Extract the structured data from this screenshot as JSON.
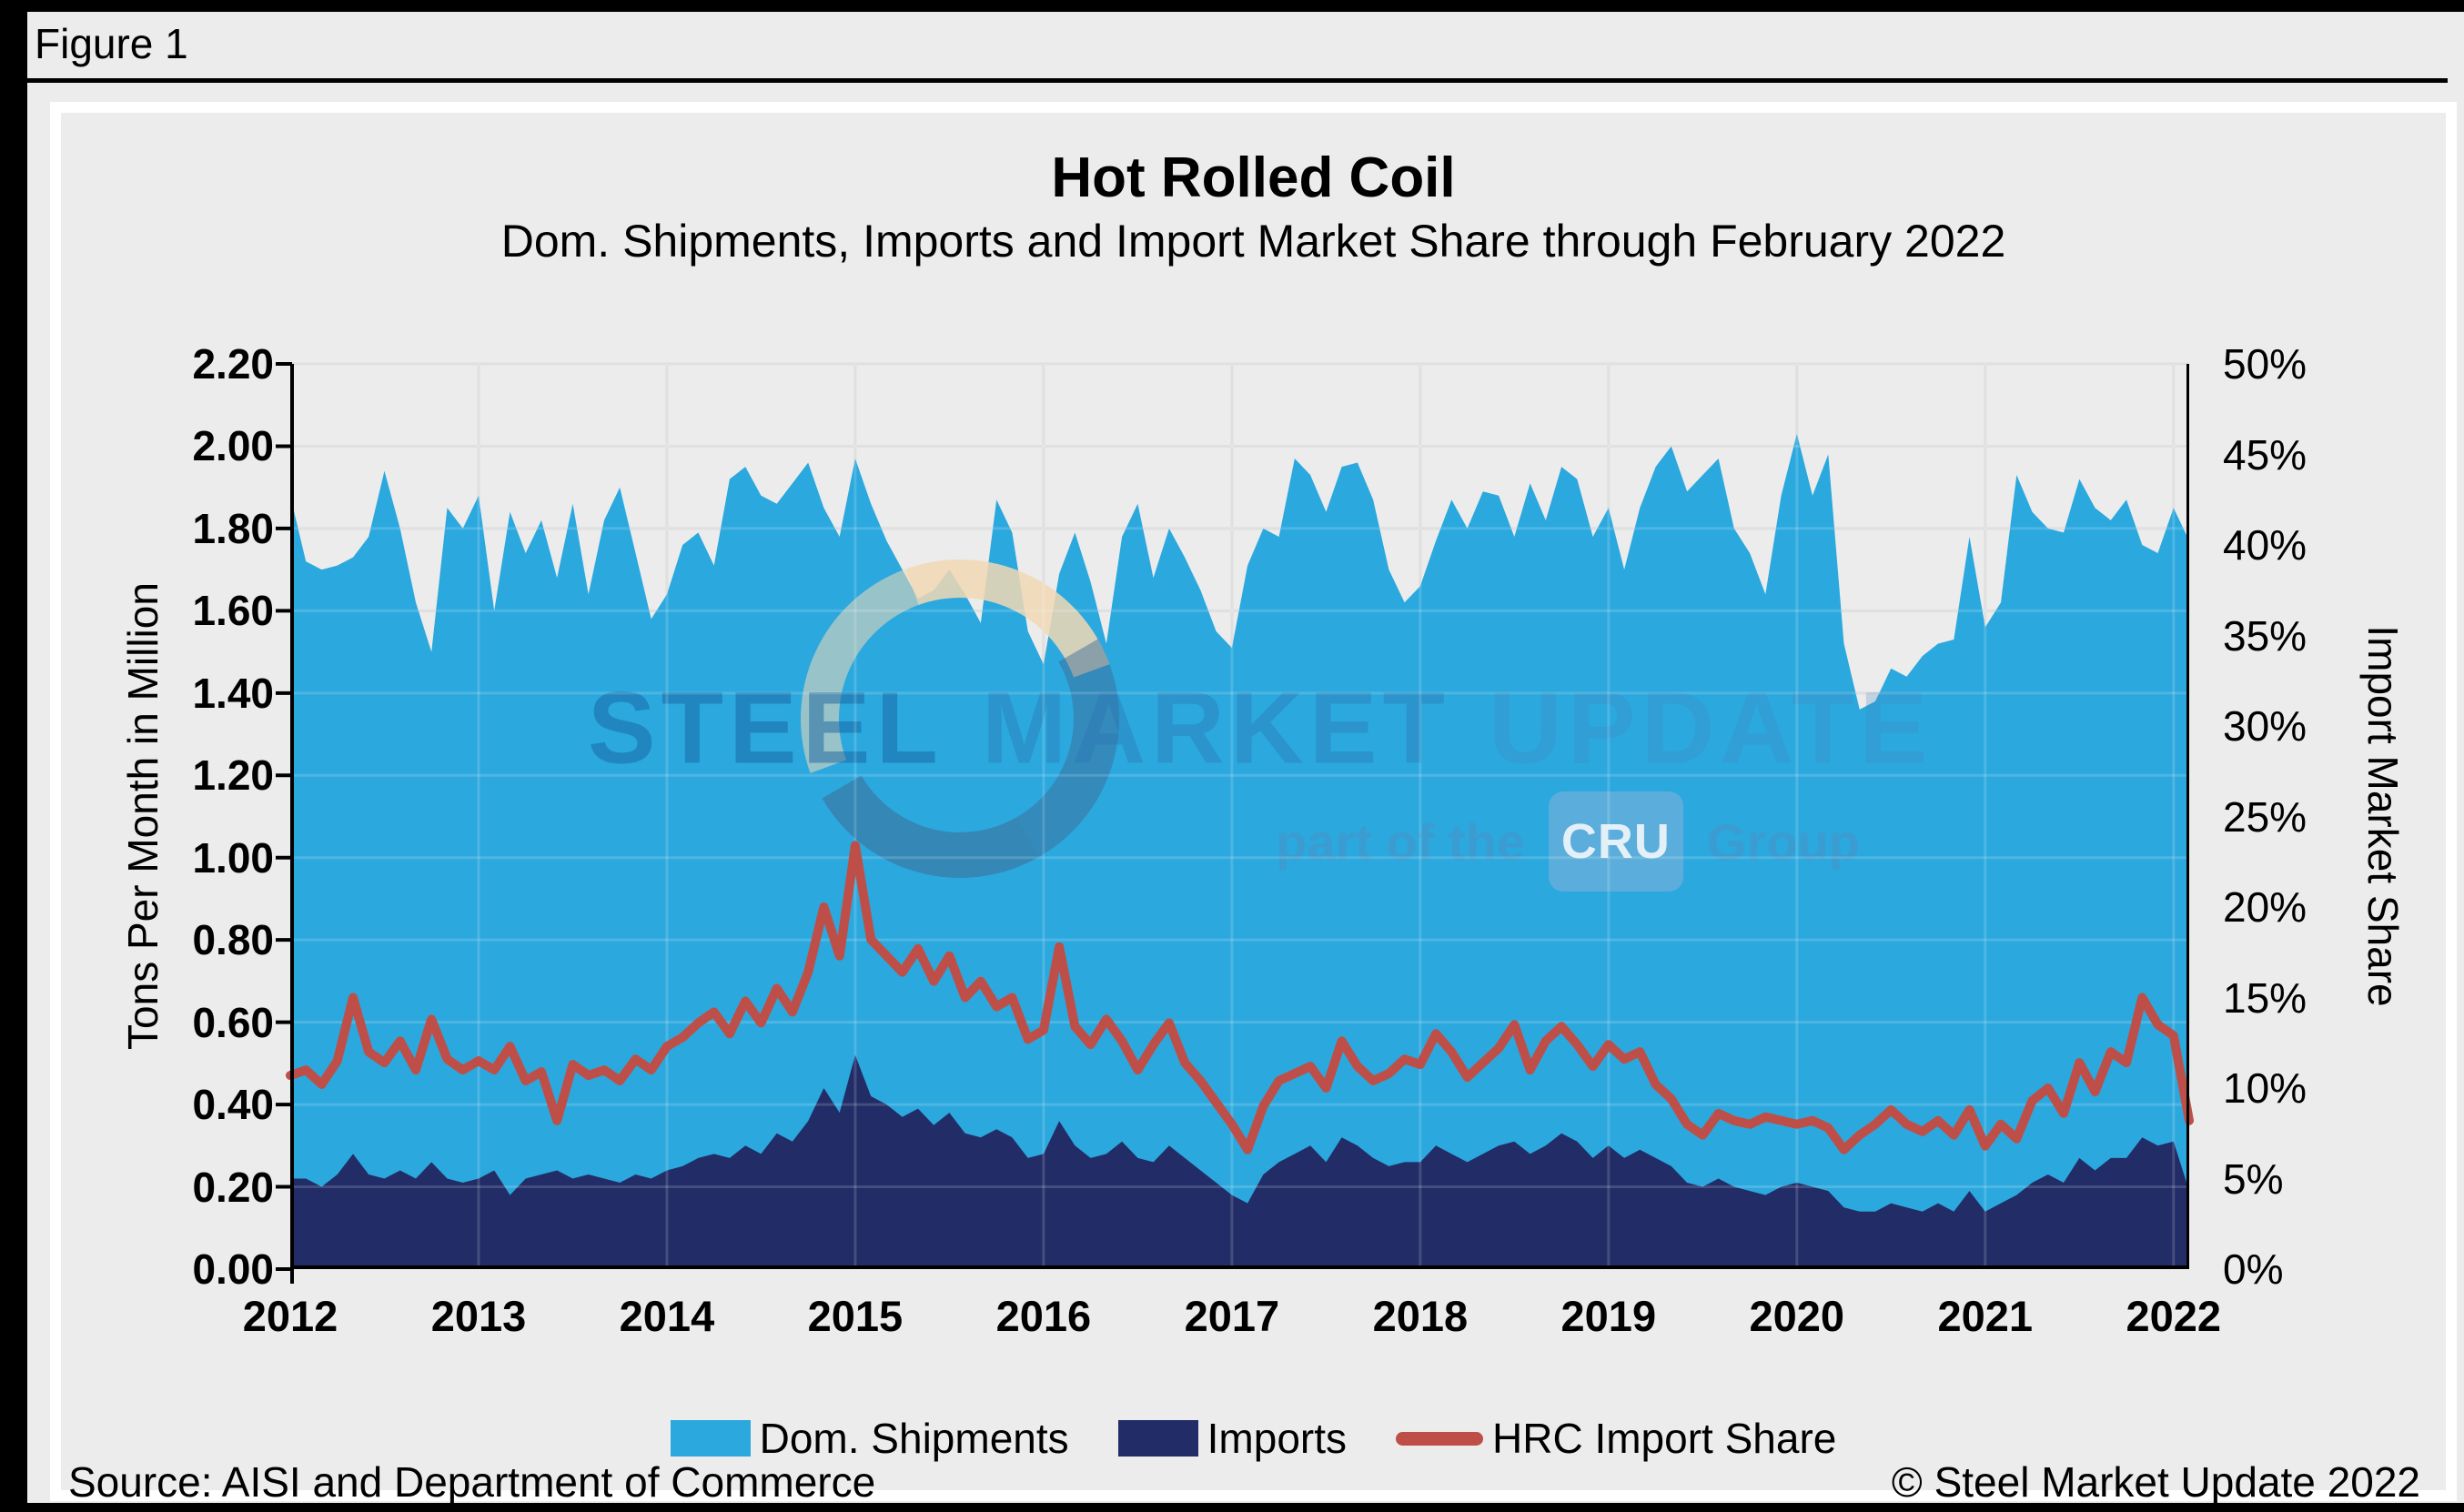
{
  "figure_label": "Figure 1",
  "chart": {
    "title": "Hot Rolled Coil",
    "subtitle": "Dom. Shipments, Imports and Import Market Share through February 2022",
    "y_left": {
      "title": "Tons Per Month in Million",
      "ticks": [
        "0.00",
        "0.20",
        "0.40",
        "0.60",
        "0.80",
        "1.00",
        "1.20",
        "1.40",
        "1.60",
        "1.80",
        "2.00",
        "2.20"
      ]
    },
    "y_right": {
      "title": "Import Market Share",
      "ticks": [
        "0%",
        "5%",
        "10%",
        "15%",
        "20%",
        "25%",
        "30%",
        "35%",
        "40%",
        "45%",
        "50%"
      ]
    },
    "x_ticks": [
      "2012",
      "2013",
      "2014",
      "2015",
      "2016",
      "2017",
      "2018",
      "2019",
      "2020",
      "2021",
      "2022"
    ]
  },
  "legend": [
    {
      "label": "Dom. Shipments",
      "type": "rect",
      "color": "#2BA8DE"
    },
    {
      "label": "Imports",
      "type": "rect",
      "color": "#222C66"
    },
    {
      "label": "HRC Import Share",
      "type": "line",
      "color": "#BE4F48"
    }
  ],
  "watermark": {
    "word1": "STEEL",
    "word2": "MARKET",
    "word3": "UPDATE",
    "sub_prefix": "part of the",
    "cru": "CRU",
    "sub_suffix": "Group"
  },
  "source": "Source: AISI and Department of Commerce",
  "copyright": "© Steel Market Update 2022",
  "colors": {
    "background": "#ececec",
    "panel_frame": "#ffffff",
    "grid": "#dadada",
    "grid_over_area": "rgba(255,255,255,0.16)",
    "axis": "#000000",
    "dom_shipments": "#2BA8DE",
    "imports": "#222C66",
    "hrc_share_line": "#BE4F48"
  },
  "chart_data": {
    "type": "combo",
    "x_unit": "month",
    "x_start": "2012-01",
    "x_end": "2022-02",
    "months_per_xtick": 12,
    "y_left_range": [
      0,
      2.2
    ],
    "y_right_range": [
      0,
      50
    ],
    "grid": true,
    "legend_position": "bottom",
    "series": [
      {
        "name": "Dom. Shipments",
        "type": "area",
        "axis": "left",
        "color": "#2BA8DE",
        "values": [
          1.88,
          1.72,
          1.7,
          1.71,
          1.73,
          1.78,
          1.94,
          1.8,
          1.62,
          1.5,
          1.85,
          1.8,
          1.88,
          1.6,
          1.84,
          1.74,
          1.82,
          1.68,
          1.86,
          1.64,
          1.82,
          1.9,
          1.74,
          1.58,
          1.64,
          1.76,
          1.79,
          1.71,
          1.92,
          1.95,
          1.88,
          1.86,
          1.91,
          1.96,
          1.85,
          1.78,
          1.97,
          1.86,
          1.77,
          1.7,
          1.63,
          1.65,
          1.7,
          1.64,
          1.57,
          1.87,
          1.79,
          1.55,
          1.47,
          1.69,
          1.79,
          1.67,
          1.52,
          1.78,
          1.86,
          1.68,
          1.8,
          1.73,
          1.65,
          1.55,
          1.51,
          1.71,
          1.8,
          1.78,
          1.97,
          1.93,
          1.84,
          1.95,
          1.96,
          1.87,
          1.7,
          1.62,
          1.66,
          1.77,
          1.87,
          1.8,
          1.89,
          1.88,
          1.78,
          1.91,
          1.82,
          1.95,
          1.92,
          1.78,
          1.85,
          1.7,
          1.85,
          1.95,
          2.0,
          1.89,
          1.93,
          1.97,
          1.8,
          1.74,
          1.64,
          1.88,
          2.03,
          1.88,
          1.98,
          1.52,
          1.36,
          1.38,
          1.46,
          1.44,
          1.49,
          1.52,
          1.53,
          1.78,
          1.56,
          1.62,
          1.93,
          1.84,
          1.8,
          1.79,
          1.92,
          1.85,
          1.82,
          1.87,
          1.76,
          1.74,
          1.85,
          1.77
        ]
      },
      {
        "name": "Imports",
        "type": "area",
        "axis": "left",
        "color": "#222C66",
        "values": [
          0.22,
          0.22,
          0.2,
          0.23,
          0.28,
          0.23,
          0.22,
          0.24,
          0.22,
          0.26,
          0.22,
          0.21,
          0.22,
          0.24,
          0.18,
          0.22,
          0.23,
          0.24,
          0.22,
          0.23,
          0.22,
          0.21,
          0.23,
          0.22,
          0.24,
          0.25,
          0.27,
          0.28,
          0.27,
          0.3,
          0.28,
          0.33,
          0.31,
          0.36,
          0.44,
          0.38,
          0.52,
          0.42,
          0.4,
          0.37,
          0.39,
          0.35,
          0.38,
          0.33,
          0.32,
          0.34,
          0.32,
          0.27,
          0.28,
          0.36,
          0.3,
          0.27,
          0.28,
          0.31,
          0.27,
          0.26,
          0.3,
          0.27,
          0.24,
          0.21,
          0.18,
          0.16,
          0.23,
          0.26,
          0.28,
          0.3,
          0.26,
          0.32,
          0.3,
          0.27,
          0.25,
          0.26,
          0.26,
          0.3,
          0.28,
          0.26,
          0.28,
          0.3,
          0.31,
          0.28,
          0.3,
          0.33,
          0.31,
          0.27,
          0.3,
          0.27,
          0.29,
          0.27,
          0.25,
          0.21,
          0.2,
          0.22,
          0.2,
          0.19,
          0.18,
          0.2,
          0.21,
          0.2,
          0.19,
          0.15,
          0.14,
          0.14,
          0.16,
          0.15,
          0.14,
          0.16,
          0.14,
          0.19,
          0.14,
          0.16,
          0.18,
          0.21,
          0.23,
          0.21,
          0.27,
          0.24,
          0.27,
          0.27,
          0.32,
          0.3,
          0.31,
          0.19
        ]
      },
      {
        "name": "HRC Import Share",
        "type": "line",
        "axis": "right",
        "color": "#BE4F48",
        "values": [
          10.7,
          11.0,
          10.2,
          11.5,
          15.0,
          12.0,
          11.4,
          12.6,
          11.0,
          13.8,
          11.6,
          11.0,
          11.5,
          11.0,
          12.3,
          10.4,
          10.9,
          8.2,
          11.3,
          10.7,
          11.0,
          10.4,
          11.6,
          11.0,
          12.3,
          12.8,
          13.6,
          14.2,
          13.0,
          14.8,
          13.6,
          15.5,
          14.2,
          16.4,
          20.0,
          17.3,
          23.4,
          18.2,
          17.3,
          16.4,
          17.7,
          15.9,
          17.3,
          15.0,
          15.9,
          14.5,
          15.0,
          12.7,
          13.2,
          17.8,
          13.4,
          12.4,
          13.8,
          12.6,
          11.0,
          12.4,
          13.6,
          11.4,
          10.4,
          9.2,
          8.0,
          6.6,
          9.0,
          10.4,
          10.8,
          11.2,
          10.0,
          12.6,
          11.2,
          10.4,
          10.8,
          11.6,
          11.3,
          13.0,
          12.0,
          10.6,
          11.4,
          12.2,
          13.5,
          11.0,
          12.6,
          13.4,
          12.4,
          11.2,
          12.4,
          11.6,
          12.0,
          10.2,
          9.4,
          8.0,
          7.4,
          8.6,
          8.2,
          8.0,
          8.4,
          8.2,
          8.0,
          8.2,
          7.8,
          6.6,
          7.4,
          8.0,
          8.8,
          8.0,
          7.6,
          8.2,
          7.4,
          8.8,
          6.8,
          8.0,
          7.2,
          9.3,
          10.0,
          8.6,
          11.4,
          9.8,
          12.0,
          11.4,
          15.0,
          13.5,
          12.9,
          8.2
        ]
      }
    ]
  }
}
